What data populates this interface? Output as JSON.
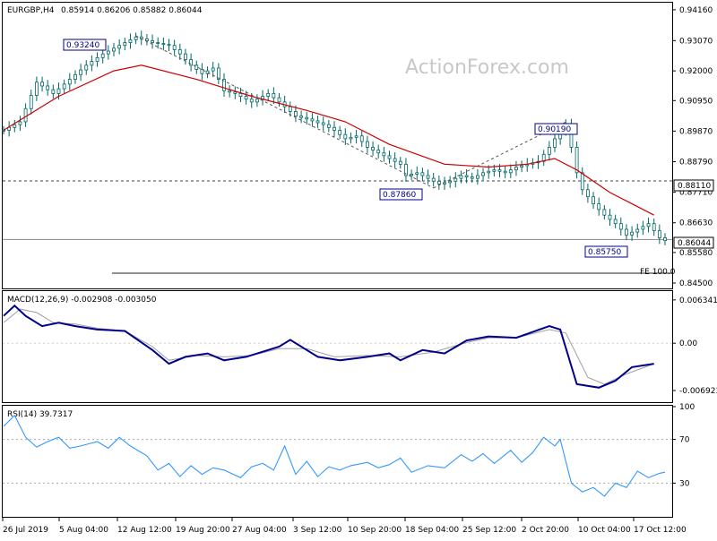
{
  "header": {
    "symbol": "EURGBP,H4",
    "ohlc": "0.85914 0.86206 0.85882 0.86044"
  },
  "watermark": "ActionForex.com",
  "annotations": {
    "high1": "0.93240",
    "low1": "0.87860",
    "high2": "0.90190",
    "low2": "0.85750",
    "level_box": "0.88110",
    "last_price": "0.86044",
    "fe_label": "FE 100.0"
  },
  "macd": {
    "title": "MACD(12,26,9) -0.002908 -0.003050"
  },
  "rsi": {
    "title": "RSI(14) 39.7317"
  },
  "colors": {
    "candle": "#006666",
    "ma": "#cc0000",
    "macd": "#00008b",
    "signal": "#a0a0a0",
    "rsi": "#3399ff"
  },
  "chart_data": [
    {
      "type": "candlestick",
      "title": "EURGBP,H4",
      "ylim": [
        0.8431,
        0.9441
      ],
      "y_ticks": [
        "0.94160",
        "0.93070",
        "0.92000",
        "0.90950",
        "0.89870",
        "0.88790",
        "0.87710",
        "0.86630",
        "0.85580",
        "0.84500"
      ],
      "x_ticks": [
        "26 Jul 2019",
        "5 Aug 04:00",
        "12 Aug 12:00",
        "19 Aug 20:00",
        "27 Aug 04:00",
        "3 Sep 12:00",
        "10 Sep 20:00",
        "18 Sep 04:00",
        "25 Sep 12:00",
        "2 Oct 20:00",
        "10 Oct 04:00",
        "17 Oct 12:00"
      ],
      "close_path": [
        [
          0,
          0.899
        ],
        [
          3,
          0.902
        ],
        [
          6,
          0.916
        ],
        [
          9,
          0.912
        ],
        [
          12,
          0.917
        ],
        [
          15,
          0.922
        ],
        [
          18,
          0.926
        ],
        [
          21,
          0.929
        ],
        [
          24,
          0.932
        ],
        [
          27,
          0.93
        ],
        [
          30,
          0.929
        ],
        [
          32,
          0.926
        ],
        [
          34,
          0.922
        ],
        [
          36,
          0.919
        ],
        [
          38,
          0.921
        ],
        [
          40,
          0.913
        ],
        [
          42,
          0.912
        ],
        [
          45,
          0.909
        ],
        [
          48,
          0.912
        ],
        [
          50,
          0.909
        ],
        [
          53,
          0.904
        ],
        [
          55,
          0.903
        ],
        [
          58,
          0.901
        ],
        [
          60,
          0.899
        ],
        [
          62,
          0.896
        ],
        [
          64,
          0.897
        ],
        [
          66,
          0.893
        ],
        [
          68,
          0.891
        ],
        [
          70,
          0.889
        ],
        [
          72,
          0.887
        ],
        [
          73,
          0.883
        ],
        [
          75,
          0.884
        ],
        [
          77,
          0.882
        ],
        [
          79,
          0.88
        ],
        [
          81,
          0.881
        ],
        [
          83,
          0.883
        ],
        [
          85,
          0.882
        ],
        [
          87,
          0.884
        ],
        [
          89,
          0.885
        ],
        [
          91,
          0.884
        ],
        [
          93,
          0.886
        ],
        [
          95,
          0.887
        ],
        [
          97,
          0.888
        ],
        [
          99,
          0.893
        ],
        [
          101,
          0.899
        ],
        [
          102,
          0.901
        ],
        [
          103,
          0.893
        ],
        [
          104,
          0.884
        ],
        [
          105,
          0.878
        ],
        [
          107,
          0.873
        ],
        [
          109,
          0.869
        ],
        [
          111,
          0.866
        ],
        [
          113,
          0.862
        ],
        [
          115,
          0.864
        ],
        [
          117,
          0.866
        ],
        [
          119,
          0.861
        ],
        [
          120,
          0.86
        ]
      ],
      "ma_path": [
        [
          0,
          0.899
        ],
        [
          10,
          0.911
        ],
        [
          20,
          0.92
        ],
        [
          25,
          0.922
        ],
        [
          35,
          0.917
        ],
        [
          45,
          0.911
        ],
        [
          55,
          0.906
        ],
        [
          62,
          0.902
        ],
        [
          70,
          0.894
        ],
        [
          80,
          0.887
        ],
        [
          88,
          0.886
        ],
        [
          95,
          0.887
        ],
        [
          100,
          0.889
        ],
        [
          104,
          0.885
        ],
        [
          110,
          0.877
        ],
        [
          115,
          0.872
        ],
        [
          118,
          0.869
        ]
      ],
      "horizontal_lines": [
        0.8811,
        0.8604
      ],
      "fe_line": 0.8485
    },
    {
      "type": "line",
      "title": "MACD(12,26,9) -0.002908 -0.003050",
      "ylim": [
        -0.0085,
        0.0075
      ],
      "y_ticks": [
        "0.006341",
        "0.00",
        "-0.006923"
      ],
      "series": [
        {
          "values": [
            [
              0,
              0.004
            ],
            [
              2,
              0.0055
            ],
            [
              4,
              0.004
            ],
            [
              7,
              0.0025
            ],
            [
              10,
              0.003
            ],
            [
              13,
              0.0025
            ],
            [
              17,
              0.002
            ],
            [
              22,
              0.0018
            ],
            [
              27,
              -0.001
            ],
            [
              30,
              -0.003
            ],
            [
              33,
              -0.002
            ],
            [
              37,
              -0.0015
            ],
            [
              40,
              -0.0025
            ],
            [
              44,
              -0.002
            ],
            [
              50,
              -0.0005
            ],
            [
              52,
              0.0005
            ],
            [
              55,
              -0.001
            ],
            [
              57,
              -0.002
            ],
            [
              61,
              -0.0025
            ],
            [
              66,
              -0.002
            ],
            [
              70,
              -0.0015
            ],
            [
              72,
              -0.0025
            ],
            [
              76,
              -0.001
            ],
            [
              80,
              -0.0015
            ],
            [
              84,
              0.0004
            ],
            [
              88,
              0.001
            ],
            [
              93,
              0.0008
            ],
            [
              99,
              0.0025
            ],
            [
              101,
              0.002
            ],
            [
              104,
              -0.006
            ],
            [
              108,
              -0.0065
            ],
            [
              111,
              -0.0055
            ],
            [
              114,
              -0.0035
            ],
            [
              118,
              -0.003
            ]
          ]
        },
        {
          "values": [
            [
              0,
              0.003
            ],
            [
              3,
              0.005
            ],
            [
              6,
              0.0045
            ],
            [
              9,
              0.003
            ],
            [
              13,
              0.0028
            ],
            [
              17,
              0.0022
            ],
            [
              22,
              0.0018
            ],
            [
              27,
              -0.0005
            ],
            [
              30,
              -0.0025
            ],
            [
              35,
              -0.0018
            ],
            [
              40,
              -0.002
            ],
            [
              45,
              -0.0018
            ],
            [
              50,
              -0.0008
            ],
            [
              55,
              -0.0008
            ],
            [
              60,
              -0.002
            ],
            [
              66,
              -0.0018
            ],
            [
              72,
              -0.002
            ],
            [
              78,
              -0.0013
            ],
            [
              84,
              0.0001
            ],
            [
              88,
              0.0008
            ],
            [
              93,
              0.0008
            ],
            [
              99,
              0.002
            ],
            [
              102,
              0.0015
            ],
            [
              106,
              -0.005
            ],
            [
              109,
              -0.006
            ],
            [
              113,
              -0.0045
            ],
            [
              118,
              -0.003
            ]
          ]
        }
      ]
    },
    {
      "type": "line",
      "title": "RSI(14) 39.7317",
      "ylim": [
        0,
        100
      ],
      "y_ticks": [
        "100",
        "70",
        "30"
      ],
      "series": [
        {
          "values": [
            [
              0,
              82
            ],
            [
              2,
              92
            ],
            [
              4,
              72
            ],
            [
              6,
              63
            ],
            [
              8,
              68
            ],
            [
              10,
              72
            ],
            [
              12,
              62
            ],
            [
              14,
              64
            ],
            [
              17,
              68
            ],
            [
              19,
              62
            ],
            [
              21,
              72
            ],
            [
              23,
              64
            ],
            [
              26,
              55
            ],
            [
              28,
              42
            ],
            [
              30,
              48
            ],
            [
              32,
              36
            ],
            [
              34,
              46
            ],
            [
              36,
              38
            ],
            [
              38,
              44
            ],
            [
              40,
              42
            ],
            [
              43,
              35
            ],
            [
              45,
              45
            ],
            [
              47,
              48
            ],
            [
              49,
              42
            ],
            [
              51,
              64
            ],
            [
              53,
              38
            ],
            [
              55,
              50
            ],
            [
              57,
              36
            ],
            [
              59,
              45
            ],
            [
              61,
              42
            ],
            [
              63,
              46
            ],
            [
              66,
              49
            ],
            [
              68,
              44
            ],
            [
              70,
              47
            ],
            [
              72,
              53
            ],
            [
              74,
              40
            ],
            [
              77,
              46
            ],
            [
              80,
              44
            ],
            [
              83,
              56
            ],
            [
              85,
              50
            ],
            [
              87,
              57
            ],
            [
              89,
              48
            ],
            [
              92,
              60
            ],
            [
              94,
              49
            ],
            [
              96,
              58
            ],
            [
              98,
              72
            ],
            [
              100,
              64
            ],
            [
              101,
              70
            ],
            [
              103,
              30
            ],
            [
              105,
              22
            ],
            [
              107,
              26
            ],
            [
              109,
              18
            ],
            [
              111,
              30
            ],
            [
              113,
              26
            ],
            [
              115,
              41
            ],
            [
              117,
              35
            ],
            [
              119,
              39
            ],
            [
              120,
              40
            ]
          ]
        }
      ]
    }
  ]
}
